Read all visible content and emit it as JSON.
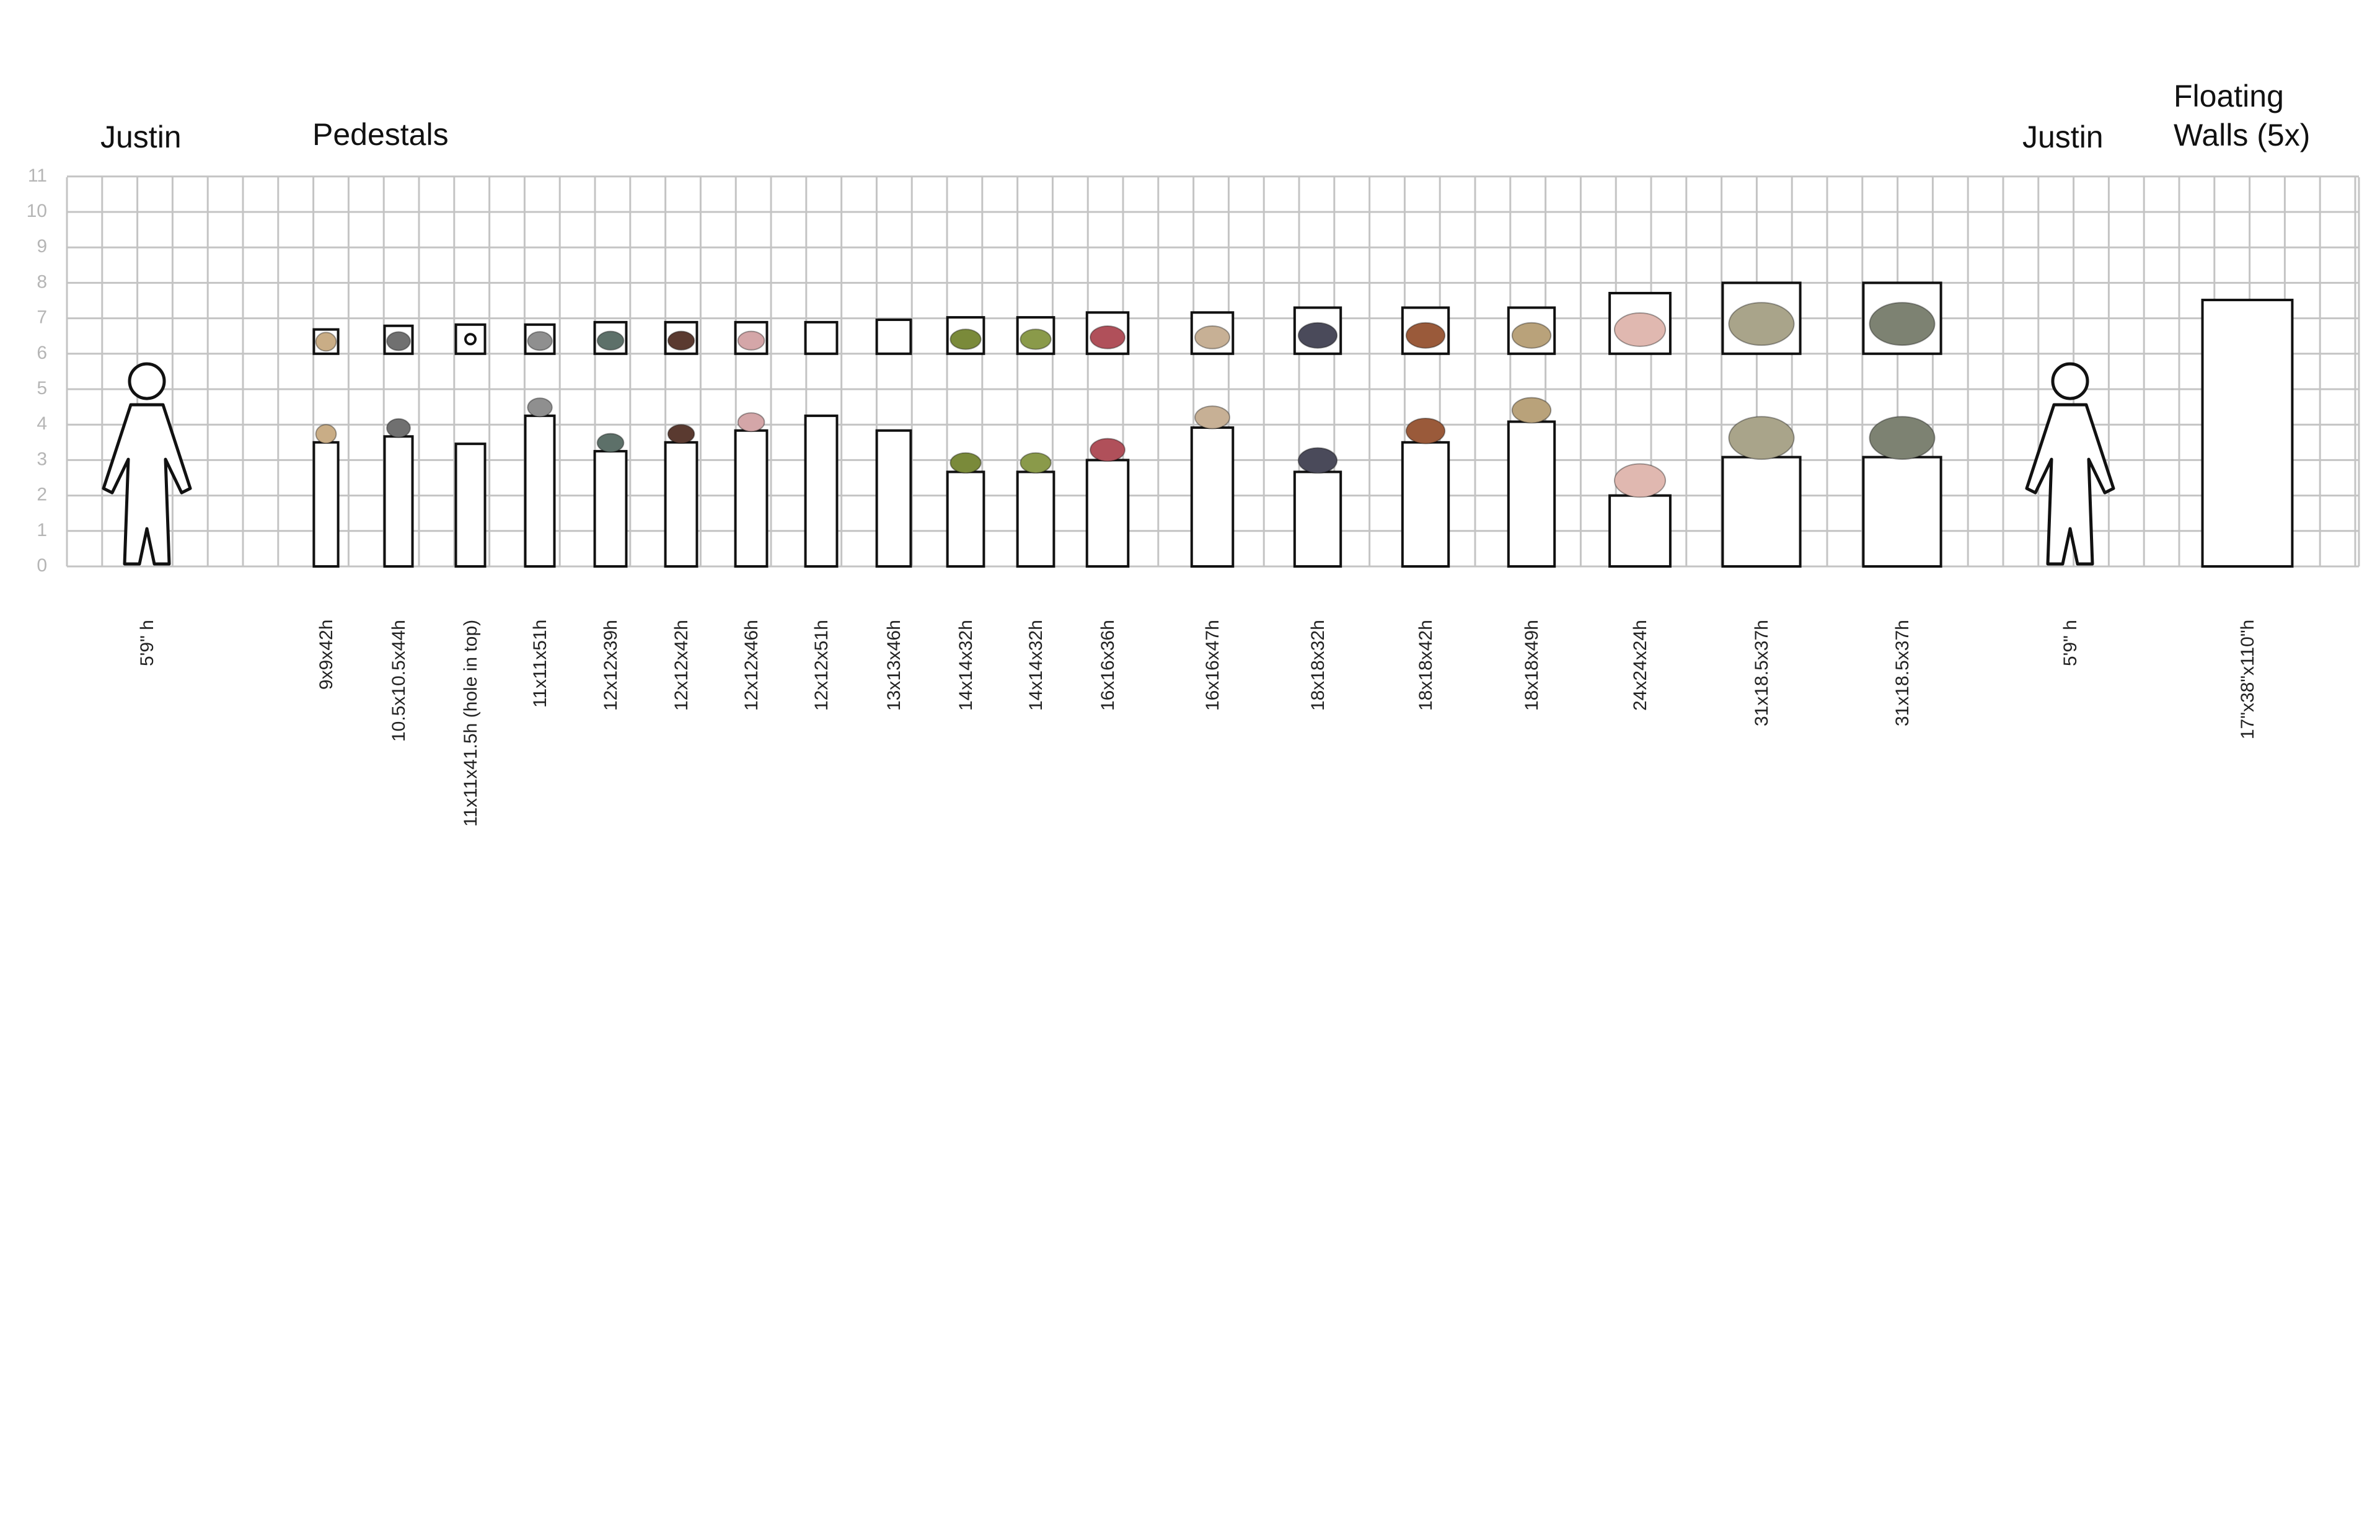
{
  "headers": {
    "justin_left": "Justin",
    "pedestals": "Pedestals",
    "justin_right": "Justin",
    "floating_line1": "Floating",
    "floating_line2": "Walls (5x)"
  },
  "y_axis_ticks": [
    "0",
    "1",
    "2",
    "3",
    "4",
    "5",
    "6",
    "7",
    "8",
    "9",
    "10",
    "11"
  ],
  "figures": [
    {
      "id": "justin-left",
      "label": "5'9\" h",
      "height_ft": 5.75
    },
    {
      "id": "justin-right",
      "label": "5'9\" h",
      "height_ft": 5.75
    }
  ],
  "pedestals": [
    {
      "label": "9x9x42h",
      "width_in": 9,
      "height_in": 42,
      "object_color": "#c9ad86",
      "has_object": true
    },
    {
      "label": "10.5x10.5x44h",
      "width_in": 10.5,
      "height_in": 44,
      "object_color": "#707070",
      "has_object": true
    },
    {
      "label": "11x11x41.5h (hole in top)",
      "width_in": 11,
      "height_in": 41.5,
      "object_color": "",
      "has_object": false,
      "hole": true
    },
    {
      "label": "11x11x51h",
      "width_in": 11,
      "height_in": 51,
      "object_color": "#8f8f8f",
      "has_object": true
    },
    {
      "label": "12x12x39h",
      "width_in": 12,
      "height_in": 39,
      "object_color": "#5d7069",
      "has_object": true
    },
    {
      "label": "12x12x42h",
      "width_in": 12,
      "height_in": 42,
      "object_color": "#5a3a30",
      "has_object": true
    },
    {
      "label": "12x12x46h",
      "width_in": 12,
      "height_in": 46,
      "object_color": "#d4a6a8",
      "has_object": true
    },
    {
      "label": "12x12x51h",
      "width_in": 12,
      "height_in": 51,
      "object_color": "",
      "has_object": false
    },
    {
      "label": "13x13x46h",
      "width_in": 13,
      "height_in": 46,
      "object_color": "",
      "has_object": false
    },
    {
      "label": "14x14x32h",
      "width_in": 14,
      "height_in": 32,
      "object_color": "#7a8a3a",
      "has_object": true
    },
    {
      "label": "14x14x32h",
      "width_in": 14,
      "height_in": 32,
      "object_color": "#8a9a4a",
      "has_object": true
    },
    {
      "label": "16x16x36h",
      "width_in": 16,
      "height_in": 36,
      "object_color": "#b0505a",
      "has_object": true
    },
    {
      "label": "16x16x47h",
      "width_in": 16,
      "height_in": 47,
      "object_color": "#c7b095",
      "has_object": true
    },
    {
      "label": "18x18x32h",
      "width_in": 18,
      "height_in": 32,
      "object_color": "#4a4a5a",
      "has_object": true
    },
    {
      "label": "18x18x42h",
      "width_in": 18,
      "height_in": 42,
      "object_color": "#9a5a3a",
      "has_object": true
    },
    {
      "label": "18x18x49h",
      "width_in": 18,
      "height_in": 49,
      "object_color": "#b9a27a",
      "has_object": true
    },
    {
      "label": "24x24x24h",
      "width_in": 24,
      "height_in": 24,
      "object_color": "#e0b8b0",
      "has_object": true
    },
    {
      "label": "31x18.5x37h",
      "width_in": 31,
      "height_in": 37,
      "object_color": "#a9a48a",
      "has_object": true
    },
    {
      "label": "31x18.5x37h",
      "width_in": 31,
      "height_in": 37,
      "object_color": "#7d8272",
      "has_object": true
    }
  ],
  "floating_wall": {
    "label": "17\"x38\"x110\"h",
    "width_in": 38,
    "height_in": 110
  },
  "colors": {
    "grid": "#c4c4c4",
    "axis_text": "#b5b5b5",
    "outline": "#111111"
  }
}
